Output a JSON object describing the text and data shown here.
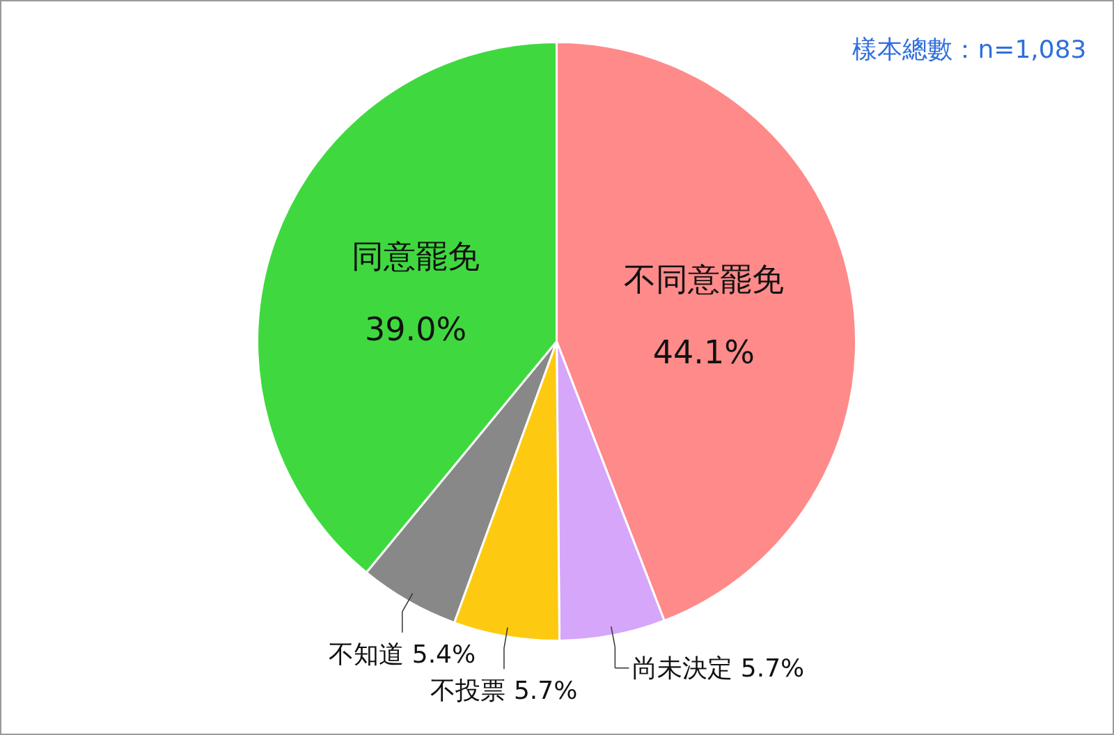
{
  "chart_data": {
    "type": "pie",
    "categories": [
      "不同意罷免",
      "尚未決定",
      "不投票",
      "不知道",
      "同意罷免"
    ],
    "values": [
      44.1,
      5.7,
      5.7,
      5.4,
      39.0
    ],
    "colors": [
      "#ff8a8a",
      "#d6a6fb",
      "#fdca11",
      "#888888",
      "#3fd93f"
    ],
    "value_labels": [
      "44.1%",
      "5.7%",
      "5.7%",
      "5.4%",
      "39.0%"
    ],
    "annotations": [
      "樣本總數：n=1,083"
    ]
  }
}
